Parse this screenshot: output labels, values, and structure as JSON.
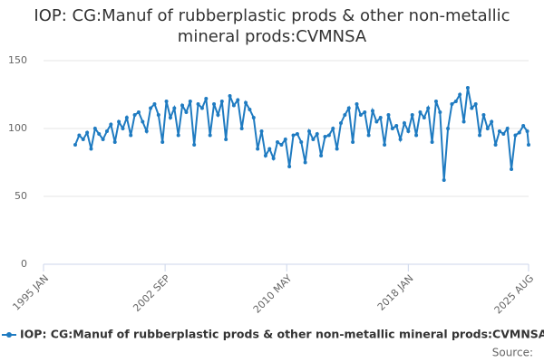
{
  "chart_data": {
    "type": "line",
    "title": "IOP: CG:Manuf of rubberplastic prods & other non-metallic mineral prods:CVMNSA",
    "source": "Source:",
    "x": [
      "1997 JAN",
      "1997 APR",
      "1997 JUL",
      "1997 OCT",
      "1998 JAN",
      "1998 APR",
      "1998 JUL",
      "1998 OCT",
      "1999 JAN",
      "1999 APR",
      "1999 JUL",
      "1999 OCT",
      "2000 JAN",
      "2000 APR",
      "2000 JUL",
      "2000 OCT",
      "2001 JAN",
      "2001 APR",
      "2001 JUL",
      "2001 OCT",
      "2002 JAN",
      "2002 APR",
      "2002 JUL",
      "2002 OCT",
      "2003 JAN",
      "2003 APR",
      "2003 JUL",
      "2003 OCT",
      "2004 JAN",
      "2004 APR",
      "2004 JUL",
      "2004 OCT",
      "2005 JAN",
      "2005 APR",
      "2005 JUL",
      "2005 OCT",
      "2006 JAN",
      "2006 APR",
      "2006 JUL",
      "2006 OCT",
      "2007 JAN",
      "2007 APR",
      "2007 JUL",
      "2007 OCT",
      "2008 JAN",
      "2008 APR",
      "2008 JUL",
      "2008 OCT",
      "2009 JAN",
      "2009 APR",
      "2009 JUL",
      "2009 OCT",
      "2010 JAN",
      "2010 APR",
      "2010 JUL",
      "2010 OCT",
      "2011 JAN",
      "2011 APR",
      "2011 JUL",
      "2011 OCT",
      "2012 JAN",
      "2012 APR",
      "2012 JUL",
      "2012 OCT",
      "2013 JAN",
      "2013 APR",
      "2013 JUL",
      "2013 OCT",
      "2014 JAN",
      "2014 APR",
      "2014 JUL",
      "2014 OCT",
      "2015 JAN",
      "2015 APR",
      "2015 JUL",
      "2015 OCT",
      "2016 JAN",
      "2016 APR",
      "2016 JUL",
      "2016 OCT",
      "2017 JAN",
      "2017 APR",
      "2017 JUL",
      "2017 OCT",
      "2018 JAN",
      "2018 APR",
      "2018 JUL",
      "2018 OCT",
      "2019 JAN",
      "2019 APR",
      "2019 JUL",
      "2019 OCT",
      "2020 JAN",
      "2020 APR",
      "2020 JUL",
      "2020 OCT",
      "2021 JAN",
      "2021 APR",
      "2021 JUL",
      "2021 OCT",
      "2022 JAN",
      "2022 APR",
      "2022 JUL",
      "2022 OCT",
      "2023 JAN",
      "2023 APR",
      "2023 JUL",
      "2023 OCT",
      "2024 JAN",
      "2024 APR",
      "2024 JUL",
      "2024 OCT",
      "2025 JAN",
      "2025 APR",
      "2025 JUL",
      "2025 AUG"
    ],
    "series": [
      {
        "name": "IOP: CG:Manuf of rubberplastic prods & other non-metallic mineral prods:CVMNSA",
        "color": "#1f7bc1",
        "values": [
          88,
          95,
          92,
          97,
          85,
          100,
          96,
          92,
          98,
          103,
          90,
          105,
          100,
          108,
          95,
          110,
          112,
          105,
          98,
          115,
          118,
          110,
          90,
          120,
          108,
          115,
          95,
          117,
          112,
          120,
          88,
          118,
          115,
          122,
          95,
          118,
          110,
          120,
          92,
          124,
          117,
          121,
          100,
          119,
          114,
          108,
          85,
          98,
          80,
          85,
          78,
          90,
          88,
          92,
          72,
          95,
          96,
          90,
          75,
          98,
          92,
          96,
          80,
          94,
          95,
          100,
          85,
          104,
          110,
          115,
          90,
          118,
          110,
          112,
          95,
          113,
          105,
          108,
          88,
          110,
          100,
          102,
          92,
          104,
          98,
          110,
          95,
          112,
          108,
          115,
          90,
          120,
          112,
          62,
          100,
          118,
          120,
          125,
          105,
          130,
          115,
          118,
          95,
          110,
          100,
          105,
          88,
          98,
          96,
          100,
          70,
          95,
          97,
          102,
          98,
          88
        ]
      }
    ],
    "xlim": [
      "1995 JAN",
      "2025 AUG"
    ],
    "xticks": [
      "1995 JAN",
      "2002 SEP",
      "2010 MAY",
      "2018 JAN",
      "2025 AUG"
    ],
    "ylim": [
      0,
      150
    ],
    "yticks": [
      0,
      50,
      100,
      150
    ],
    "grid": true
  }
}
